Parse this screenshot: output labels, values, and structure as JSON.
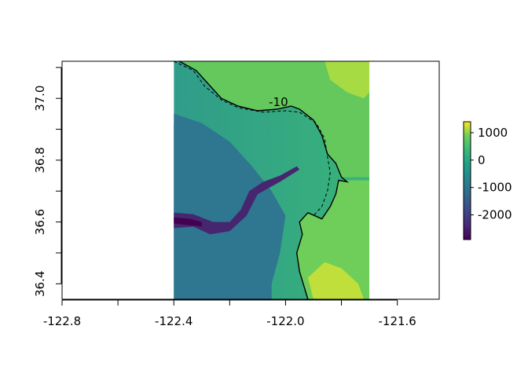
{
  "chart_data": {
    "type": "heatmap",
    "title": "",
    "xlabel": "",
    "ylabel": "",
    "xlim": [
      -122.8,
      -121.45
    ],
    "ylim": [
      36.35,
      37.12
    ],
    "raster_extent": {
      "x": [
        -122.4,
        -121.7
      ],
      "y": [
        36.35,
        37.12
      ]
    },
    "colormap": "viridis",
    "value_range": [
      -2900,
      1400
    ],
    "x_ticks": [
      {
        "value": -122.8,
        "label": "-122.8"
      },
      {
        "value": -122.6,
        "label": ""
      },
      {
        "value": -122.4,
        "label": "-122.4"
      },
      {
        "value": -122.2,
        "label": ""
      },
      {
        "value": -122.0,
        "label": "-122.0"
      },
      {
        "value": -121.8,
        "label": ""
      },
      {
        "value": -121.6,
        "label": "-121.6"
      }
    ],
    "y_ticks": [
      {
        "value": 36.4,
        "label": "36.4"
      },
      {
        "value": 36.5,
        "label": ""
      },
      {
        "value": 36.6,
        "label": "36.6"
      },
      {
        "value": 36.7,
        "label": ""
      },
      {
        "value": 36.8,
        "label": "36.8"
      },
      {
        "value": 36.9,
        "label": ""
      },
      {
        "value": 37.0,
        "label": "37.0"
      },
      {
        "value": 37.1,
        "label": ""
      }
    ],
    "legend": {
      "ticks": [
        {
          "value": 1000,
          "label": "1000"
        },
        {
          "value": 0,
          "label": "0"
        },
        {
          "value": -1000,
          "label": "-1000"
        },
        {
          "value": -2000,
          "label": "-2000"
        }
      ]
    },
    "coastline": [
      [
        -122.38,
        37.12
      ],
      [
        -122.32,
        37.09
      ],
      [
        -122.28,
        37.05
      ],
      [
        -122.23,
        37.0
      ],
      [
        -122.17,
        36.975
      ],
      [
        -122.1,
        36.96
      ],
      [
        -122.03,
        36.965
      ],
      [
        -121.98,
        36.975
      ],
      [
        -121.95,
        36.965
      ],
      [
        -121.9,
        36.93
      ],
      [
        -121.87,
        36.88
      ],
      [
        -121.85,
        36.82
      ],
      [
        -121.82,
        36.79
      ],
      [
        -121.8,
        36.745
      ],
      [
        -121.78,
        36.73
      ],
      [
        -121.81,
        36.735
      ],
      [
        -121.82,
        36.69
      ],
      [
        -121.84,
        36.65
      ],
      [
        -121.87,
        36.61
      ],
      [
        -121.92,
        36.63
      ],
      [
        -121.95,
        36.6
      ],
      [
        -121.94,
        36.56
      ],
      [
        -121.96,
        36.5
      ],
      [
        -121.95,
        36.44
      ],
      [
        -121.92,
        36.35
      ]
    ],
    "contour_line": [
      [
        -122.4,
        37.12
      ],
      [
        -122.33,
        37.09
      ],
      [
        -122.29,
        37.04
      ],
      [
        -122.23,
        36.995
      ],
      [
        -122.17,
        36.97
      ],
      [
        -122.08,
        36.955
      ],
      [
        -122.0,
        36.96
      ],
      [
        -121.95,
        36.955
      ],
      [
        -121.89,
        36.92
      ],
      [
        -121.86,
        36.87
      ],
      [
        -121.85,
        36.81
      ],
      [
        -121.84,
        36.76
      ],
      [
        -121.85,
        36.7
      ],
      [
        -121.87,
        36.65
      ],
      [
        -121.9,
        36.62
      ]
    ],
    "contour_label": "-10"
  }
}
